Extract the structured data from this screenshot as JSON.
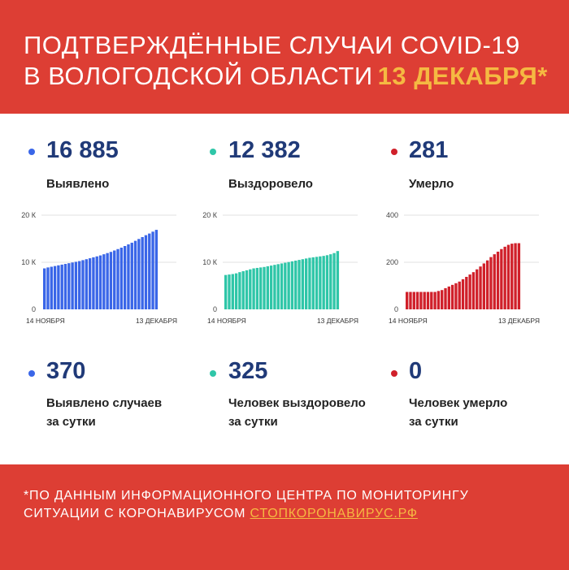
{
  "header": {
    "line1": "ПОДТВЕРЖДЁННЫЕ СЛУЧАИ COVID-19",
    "line2": "В ВОЛОГОДСКОЙ ОБЛАСТИ",
    "date": "13 ДЕКАБРЯ*"
  },
  "stats": [
    {
      "value": "16 885",
      "label": "Выявлено",
      "color": "#3a66e8"
    },
    {
      "value": "12 382",
      "label": "Выздоровело",
      "color": "#2fc6a8"
    },
    {
      "value": "281",
      "label": "Умерло",
      "color": "#d0202a"
    }
  ],
  "daily": [
    {
      "value": "370",
      "label1": "Выявлено случаев",
      "label2": "за сутки",
      "color": "#3a66e8"
    },
    {
      "value": "325",
      "label1": "Человек выздоровело",
      "label2": "за сутки",
      "color": "#2fc6a8"
    },
    {
      "value": "0",
      "label1": "Человек умерло",
      "label2": "за сутки",
      "color": "#d0202a"
    }
  ],
  "chart_data": [
    {
      "type": "bar",
      "title": "Выявлено",
      "x_start": "14 НОЯБРЯ",
      "x_end": "13 ДЕКАБРЯ",
      "y_ticks": [
        "0",
        "10 К",
        "20 К"
      ],
      "ylim": [
        0,
        20000
      ],
      "color": "#3a66e8",
      "values": [
        8700,
        8900,
        9050,
        9200,
        9350,
        9500,
        9650,
        9800,
        9950,
        10100,
        10250,
        10450,
        10650,
        10850,
        11050,
        11250,
        11450,
        11700,
        11950,
        12200,
        12500,
        12800,
        13100,
        13450,
        13800,
        14150,
        14550,
        14950,
        15350,
        15750,
        16100,
        16500,
        16885
      ]
    },
    {
      "type": "bar",
      "title": "Выздоровело",
      "x_start": "14 НОЯБРЯ",
      "x_end": "13 ДЕКАБРЯ",
      "y_ticks": [
        "0",
        "10 К",
        "20 К"
      ],
      "ylim": [
        0,
        20000
      ],
      "color": "#2fc6a8",
      "values": [
        7300,
        7400,
        7500,
        7650,
        7900,
        8100,
        8300,
        8500,
        8700,
        8800,
        8900,
        9000,
        9150,
        9300,
        9450,
        9600,
        9750,
        9900,
        10050,
        10200,
        10350,
        10500,
        10650,
        10800,
        10950,
        11050,
        11150,
        11250,
        11350,
        11500,
        11700,
        11950,
        12382
      ]
    },
    {
      "type": "bar",
      "title": "Умерло",
      "x_start": "14 НОЯБРЯ",
      "x_end": "13 ДЕКАБРЯ",
      "y_ticks": [
        "0",
        "200",
        "400"
      ],
      "ylim": [
        0,
        400
      ],
      "color": "#d0202a",
      "values": [
        74,
        74,
        74,
        74,
        74,
        74,
        74,
        74,
        74,
        78,
        82,
        90,
        97,
        104,
        111,
        118,
        128,
        138,
        148,
        158,
        170,
        182,
        195,
        208,
        222,
        234,
        245,
        256,
        266,
        274,
        279,
        281,
        281
      ]
    }
  ],
  "footer": {
    "line1": "*ПО ДАННЫМ ИНФОРМАЦИОННОГО ЦЕНТРА ПО МОНИТОРИНГУ",
    "line2": "СИТУАЦИИ С КОРОНАВИРУСОМ",
    "link": "СТОПКОРОНАВИРУС.РФ"
  }
}
